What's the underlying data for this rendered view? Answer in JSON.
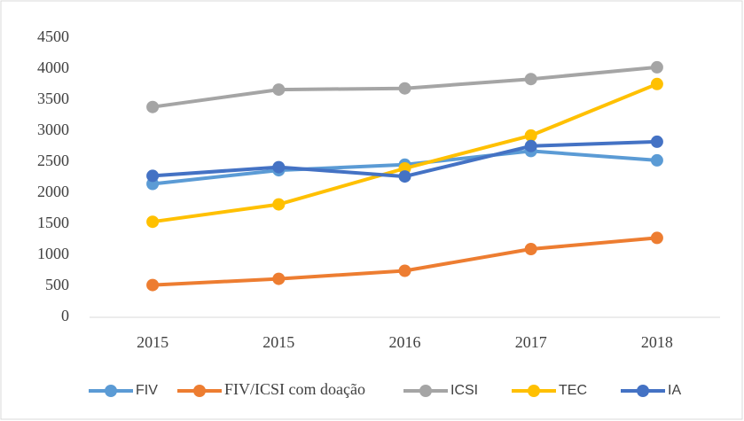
{
  "chart_data": {
    "type": "line",
    "categories": [
      "2015",
      "2015",
      "2016",
      "2017",
      "2018"
    ],
    "series": [
      {
        "name": "FIV",
        "color": "#5b9bd5",
        "values": [
          2150,
          2370,
          2460,
          2680,
          2530
        ]
      },
      {
        "name": "FIV/ICSI com doação",
        "color": "#ed7d31",
        "values": [
          520,
          620,
          750,
          1100,
          1280
        ]
      },
      {
        "name": "ICSI",
        "color": "#a5a5a5",
        "values": [
          3390,
          3670,
          3690,
          3840,
          4030
        ]
      },
      {
        "name": "TEC",
        "color": "#ffc000",
        "values": [
          1540,
          1820,
          2400,
          2930,
          3760
        ]
      },
      {
        "name": "IA",
        "color": "#4472c4",
        "values": [
          2280,
          2420,
          2270,
          2760,
          2830
        ]
      }
    ],
    "ylim": [
      0,
      4500
    ],
    "yticks": [
      0,
      500,
      1000,
      1500,
      2000,
      2500,
      3000,
      3500,
      4000,
      4500
    ],
    "grid": false,
    "legend": "bottom"
  }
}
